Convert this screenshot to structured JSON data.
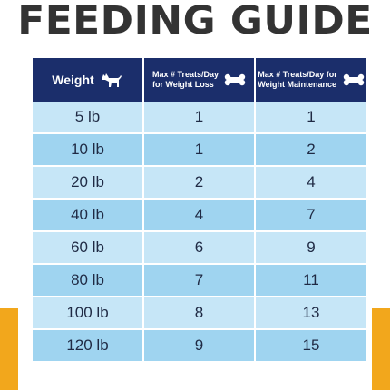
{
  "title": "FEEDING GUIDE",
  "table": {
    "headers": {
      "weight": "Weight",
      "loss_line1": "Max # Treats/Day",
      "loss_line2": "for Weight Loss",
      "maint_line1": "Max # Treats/Day for",
      "maint_line2": "Weight Maintenance"
    },
    "rows": [
      {
        "weight": "5 lb",
        "loss": "1",
        "maintenance": "1"
      },
      {
        "weight": "10 lb",
        "loss": "1",
        "maintenance": "2"
      },
      {
        "weight": "20 lb",
        "loss": "2",
        "maintenance": "4"
      },
      {
        "weight": "40 lb",
        "loss": "4",
        "maintenance": "7"
      },
      {
        "weight": "60 lb",
        "loss": "6",
        "maintenance": "9"
      },
      {
        "weight": "80 lb",
        "loss": "7",
        "maintenance": "11"
      },
      {
        "weight": "100 lb",
        "loss": "8",
        "maintenance": "13"
      },
      {
        "weight": "120 lb",
        "loss": "9",
        "maintenance": "15"
      }
    ]
  },
  "colors": {
    "header_bg": "#1b2e6b",
    "row_light": "#c6e6f7",
    "row_dark": "#9fd4f0",
    "accent_band": "#f2a71c",
    "title_text": "#333333"
  },
  "icons": [
    "dog-icon",
    "bone-icon",
    "bone-icon"
  ]
}
